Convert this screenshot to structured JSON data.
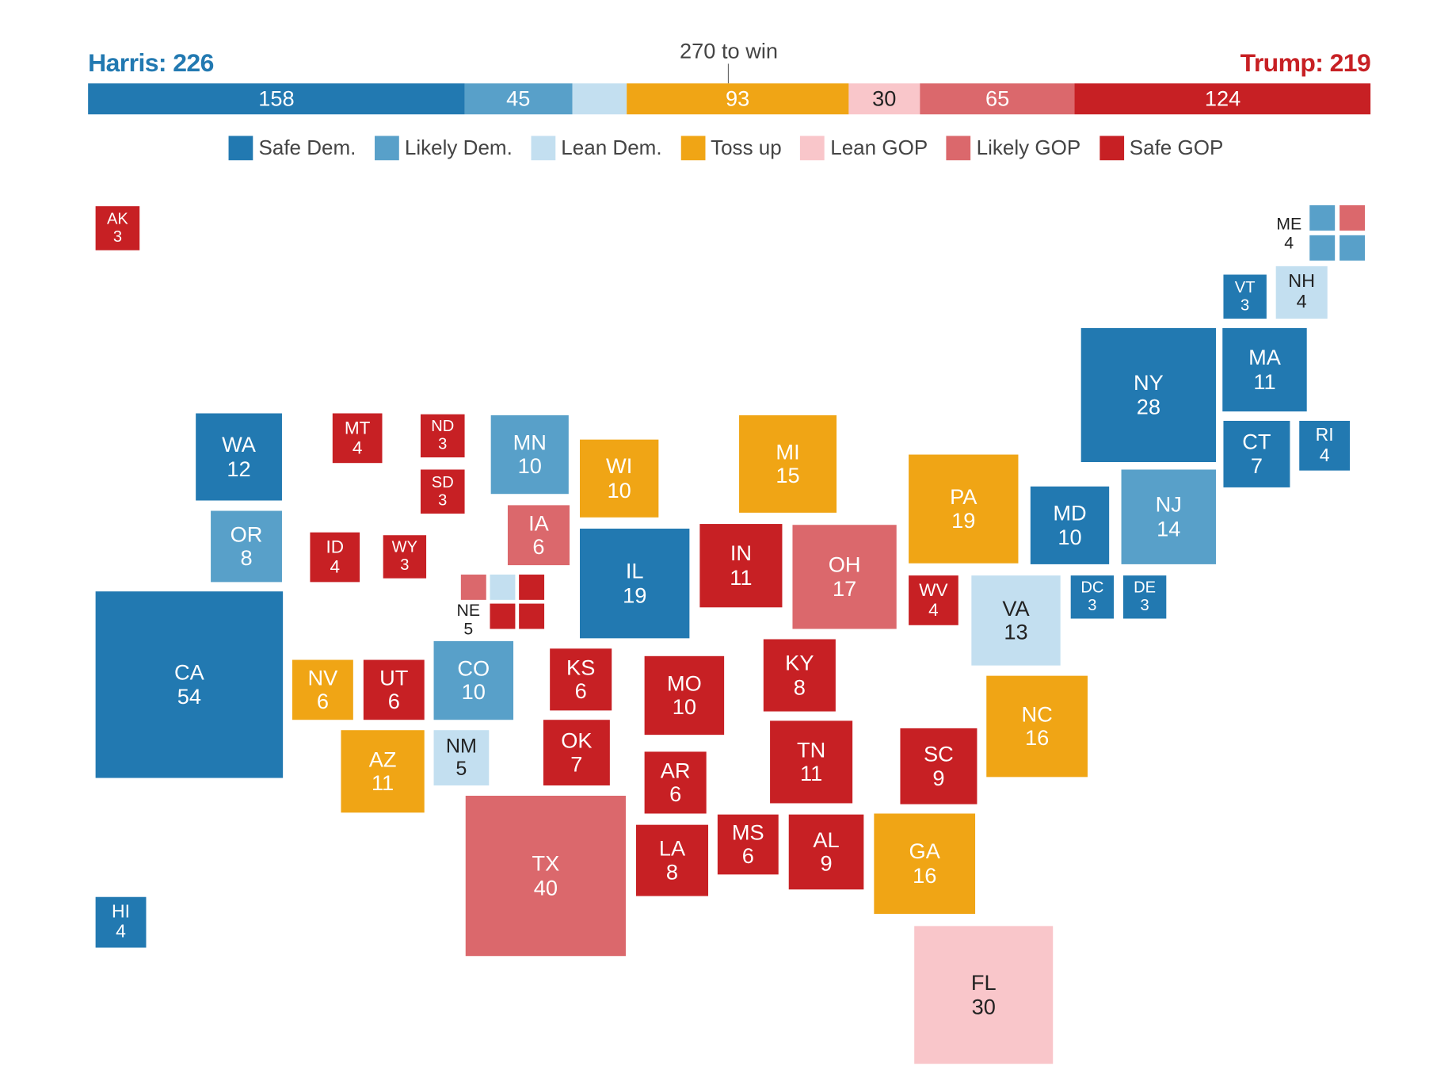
{
  "chart_data": {
    "type": "tile-map",
    "header": {
      "harris": "Harris: 226",
      "trump": "Trump: 219",
      "threshold": "270 to win"
    },
    "colors": {
      "safe_dem": "#2279b1",
      "likely_dem": "#58a0c9",
      "lean_dem": "#c3dff0",
      "toss_up": "#f0a515",
      "lean_gop": "#f9c6ca",
      "likely_gop": "#db686c",
      "safe_gop": "#c72024"
    },
    "bar": [
      {
        "rating": "safe_dem",
        "value": 158,
        "label": "158"
      },
      {
        "rating": "likely_dem",
        "value": 45,
        "label": "45"
      },
      {
        "rating": "lean_dem",
        "value": 23,
        "label": ""
      },
      {
        "rating": "toss_up",
        "value": 93,
        "label": "93"
      },
      {
        "rating": "lean_gop",
        "value": 30,
        "label": "30"
      },
      {
        "rating": "likely_gop",
        "value": 65,
        "label": "65"
      },
      {
        "rating": "safe_gop",
        "value": 124,
        "label": "124"
      }
    ],
    "legend": [
      {
        "rating": "safe_dem",
        "label": "Safe Dem."
      },
      {
        "rating": "likely_dem",
        "label": "Likely Dem."
      },
      {
        "rating": "lean_dem",
        "label": "Lean Dem."
      },
      {
        "rating": "toss_up",
        "label": "Toss up"
      },
      {
        "rating": "lean_gop",
        "label": "Lean GOP"
      },
      {
        "rating": "likely_gop",
        "label": "Likely GOP"
      },
      {
        "rating": "safe_gop",
        "label": "Safe GOP"
      }
    ],
    "states": [
      {
        "abbr": "AK",
        "ev": 3,
        "rating": "safe_gop"
      },
      {
        "abbr": "VT",
        "ev": 3,
        "rating": "safe_dem"
      },
      {
        "abbr": "NH",
        "ev": 4,
        "rating": "lean_dem"
      },
      {
        "abbr": "NY",
        "ev": 28,
        "rating": "safe_dem"
      },
      {
        "abbr": "MA",
        "ev": 11,
        "rating": "safe_dem"
      },
      {
        "abbr": "CT",
        "ev": 7,
        "rating": "safe_dem"
      },
      {
        "abbr": "RI",
        "ev": 4,
        "rating": "safe_dem"
      },
      {
        "abbr": "WA",
        "ev": 12,
        "rating": "safe_dem"
      },
      {
        "abbr": "MT",
        "ev": 4,
        "rating": "safe_gop"
      },
      {
        "abbr": "ND",
        "ev": 3,
        "rating": "safe_gop"
      },
      {
        "abbr": "SD",
        "ev": 3,
        "rating": "safe_gop"
      },
      {
        "abbr": "MN",
        "ev": 10,
        "rating": "likely_dem"
      },
      {
        "abbr": "WI",
        "ev": 10,
        "rating": "toss_up"
      },
      {
        "abbr": "MI",
        "ev": 15,
        "rating": "toss_up"
      },
      {
        "abbr": "PA",
        "ev": 19,
        "rating": "toss_up"
      },
      {
        "abbr": "MD",
        "ev": 10,
        "rating": "safe_dem"
      },
      {
        "abbr": "NJ",
        "ev": 14,
        "rating": "likely_dem"
      },
      {
        "abbr": "OR",
        "ev": 8,
        "rating": "likely_dem"
      },
      {
        "abbr": "ID",
        "ev": 4,
        "rating": "safe_gop"
      },
      {
        "abbr": "WY",
        "ev": 3,
        "rating": "safe_gop"
      },
      {
        "abbr": "IA",
        "ev": 6,
        "rating": "likely_gop"
      },
      {
        "abbr": "IL",
        "ev": 19,
        "rating": "safe_dem"
      },
      {
        "abbr": "IN",
        "ev": 11,
        "rating": "safe_gop"
      },
      {
        "abbr": "OH",
        "ev": 17,
        "rating": "likely_gop"
      },
      {
        "abbr": "WV",
        "ev": 4,
        "rating": "safe_gop"
      },
      {
        "abbr": "VA",
        "ev": 13,
        "rating": "lean_dem"
      },
      {
        "abbr": "DC",
        "ev": 3,
        "rating": "safe_dem"
      },
      {
        "abbr": "DE",
        "ev": 3,
        "rating": "safe_dem"
      },
      {
        "abbr": "CA",
        "ev": 54,
        "rating": "safe_dem"
      },
      {
        "abbr": "NV",
        "ev": 6,
        "rating": "toss_up"
      },
      {
        "abbr": "UT",
        "ev": 6,
        "rating": "safe_gop"
      },
      {
        "abbr": "CO",
        "ev": 10,
        "rating": "likely_dem"
      },
      {
        "abbr": "KS",
        "ev": 6,
        "rating": "safe_gop"
      },
      {
        "abbr": "MO",
        "ev": 10,
        "rating": "safe_gop"
      },
      {
        "abbr": "KY",
        "ev": 8,
        "rating": "safe_gop"
      },
      {
        "abbr": "NC",
        "ev": 16,
        "rating": "toss_up"
      },
      {
        "abbr": "AZ",
        "ev": 11,
        "rating": "toss_up"
      },
      {
        "abbr": "NM",
        "ev": 5,
        "rating": "lean_dem"
      },
      {
        "abbr": "OK",
        "ev": 7,
        "rating": "safe_gop"
      },
      {
        "abbr": "AR",
        "ev": 6,
        "rating": "safe_gop"
      },
      {
        "abbr": "TN",
        "ev": 11,
        "rating": "safe_gop"
      },
      {
        "abbr": "SC",
        "ev": 9,
        "rating": "safe_gop"
      },
      {
        "abbr": "TX",
        "ev": 40,
        "rating": "likely_gop"
      },
      {
        "abbr": "LA",
        "ev": 8,
        "rating": "safe_gop"
      },
      {
        "abbr": "MS",
        "ev": 6,
        "rating": "safe_gop"
      },
      {
        "abbr": "AL",
        "ev": 9,
        "rating": "safe_gop"
      },
      {
        "abbr": "GA",
        "ev": 16,
        "rating": "toss_up"
      },
      {
        "abbr": "FL",
        "ev": 30,
        "rating": "lean_gop"
      },
      {
        "abbr": "HI",
        "ev": 4,
        "rating": "safe_dem"
      }
    ],
    "split_states": [
      {
        "abbr": "ME",
        "ev": 4,
        "districts": [
          "likely_dem",
          "likely_gop",
          "likely_dem",
          "likely_dem"
        ]
      },
      {
        "abbr": "NE",
        "ev": 5,
        "districts": [
          "likely_gop",
          "lean_dem",
          "safe_gop",
          "safe_gop",
          "safe_gop"
        ]
      }
    ]
  }
}
